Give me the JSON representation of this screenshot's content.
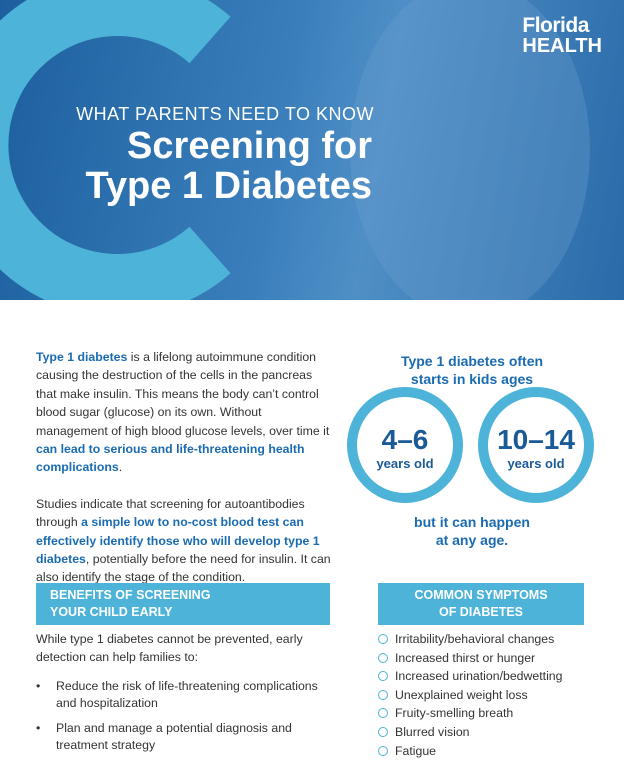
{
  "logo": {
    "line1": "Florida",
    "line2": "HEALTH"
  },
  "header": {
    "kicker": "WHAT PARENTS NEED TO KNOW",
    "title_lines": [
      "Screening for",
      "Type 1 Diabetes"
    ]
  },
  "intro": {
    "paragraphs": [
      {
        "runs": [
          {
            "text": "Type 1 diabetes",
            "bold": true
          },
          {
            "text": " is a lifelong autoimmune condition causing the destruction of the cells in the pancreas that make insulin. This means the body can’t control blood sugar (glucose) on its own. Without management of high blood glucose levels, over time it ",
            "bold": false
          },
          {
            "text": "can lead to serious and life-threatening health complications",
            "bold": true
          },
          {
            "text": ".",
            "bold": false
          }
        ]
      },
      {
        "runs": [
          {
            "text": "Studies indicate that screening for autoantibodies through ",
            "bold": false
          },
          {
            "text": "a simple low to no-cost blood test can effectively identify those who will develop type 1 diabetes",
            "bold": true
          },
          {
            "text": ", potentially before the need for insulin. It can also identify the stage of the condition.",
            "bold": false
          }
        ]
      }
    ]
  },
  "callout": {
    "heading_lines": [
      "Type 1 diabetes often",
      "starts in kids ages"
    ],
    "ranges": [
      {
        "value": "4–6",
        "unit": "years old"
      },
      {
        "value": "10–14",
        "unit": "years old"
      }
    ],
    "footer_lines": [
      "but it can happen",
      "at any age."
    ]
  },
  "benefits": {
    "heading_lines": [
      "BENEFITS OF SCREENING",
      "YOUR CHILD EARLY"
    ],
    "text": "While type 1 diabetes cannot be prevented, early detection can help families to:",
    "items": [
      "Reduce the risk of life-threatening complications and hospitalization",
      "Plan and manage a potential diagnosis and treatment strategy"
    ]
  },
  "symptoms": {
    "heading_lines": [
      "COMMON SYMPTOMS",
      "OF DIABETES"
    ],
    "items": [
      "Irritability/behavioral changes",
      "Increased thirst or hunger",
      "Increased urination/bedwetting",
      "Unexplained weight loss",
      "Fruity-smelling breath",
      "Blurred vision",
      "Fatigue"
    ]
  }
}
